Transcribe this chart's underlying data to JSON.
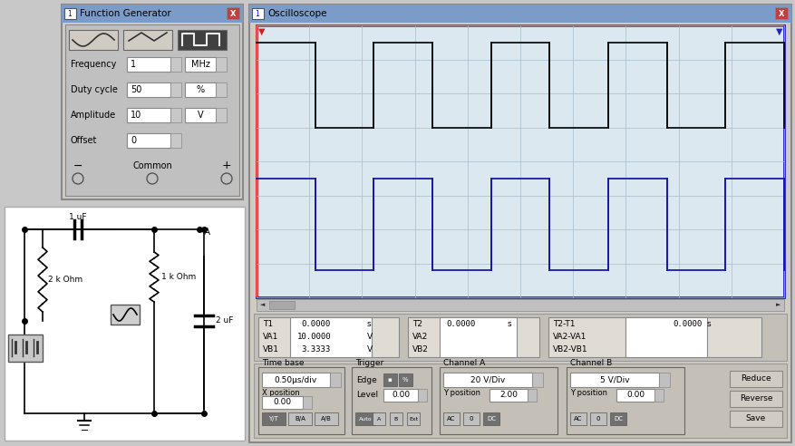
{
  "bg_color": "#c8c8c8",
  "osc_title": "Oscilloscope",
  "fg_title": "Function Generator",
  "screen_bg": "#dce8f0",
  "screen_grid_color": "#a8bcc8",
  "ch1_color": "#111111",
  "ch2_color": "#1a1aaa",
  "title_bar_color": "#7b9cc8",
  "timebase": "0.50μs/div",
  "ch_a_div": "20 V/Div",
  "ch_b_div": "5 V/Div",
  "ch_a_ypos": "2.00",
  "ch_b_ypos": "0.00",
  "x_position": "0.00",
  "level": "0.00",
  "T1": "0.0000",
  "T2": "0.0000",
  "T2T1": "0.0000",
  "VA1": "10.0000",
  "VB1": "3.3333"
}
